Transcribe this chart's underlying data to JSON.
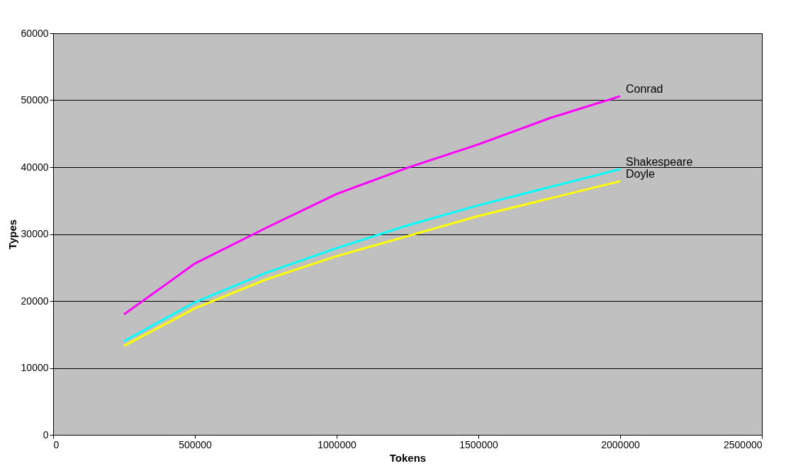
{
  "chart_data": {
    "type": "line",
    "xlabel": "Tokens",
    "ylabel": "Types",
    "x": [
      250000,
      500000,
      750000,
      1000000,
      1250000,
      1500000,
      1750000,
      2000000
    ],
    "series": [
      {
        "name": "Conrad",
        "color": "#ff00ff",
        "values": [
          18000,
          25600,
          30900,
          36000,
          39900,
          43400,
          47300,
          50600
        ]
      },
      {
        "name": "Shakespeare",
        "color": "#00ffff",
        "values": [
          14000,
          19800,
          24200,
          27900,
          31300,
          34300,
          37000,
          39700
        ]
      },
      {
        "name": "Doyle",
        "color": "#ffff00",
        "values": [
          13300,
          18900,
          23200,
          26700,
          29700,
          32700,
          35300,
          37900
        ]
      }
    ],
    "xlim": [
      0,
      2500000
    ],
    "xticks": [
      0,
      500000,
      1000000,
      1500000,
      2000000,
      2500000
    ],
    "ylim": [
      0,
      60000
    ],
    "yticks": [
      0,
      10000,
      20000,
      30000,
      40000,
      50000,
      60000
    ],
    "grid": "y",
    "legend": false,
    "marker": "none",
    "line_style": "solid"
  }
}
